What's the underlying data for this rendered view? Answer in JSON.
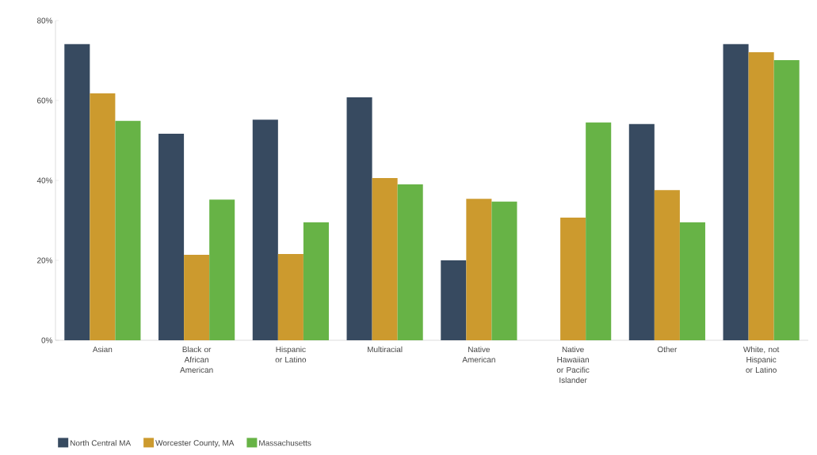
{
  "chart_data": {
    "type": "bar",
    "categories": [
      "Asian",
      "Black or African American",
      "Hispanic or Latino",
      "Multiracial",
      "Native American",
      "Native Hawaiian or Pacific Islander",
      "Other",
      "White, not Hispanic or Latino"
    ],
    "series": [
      {
        "name": "North Central MA",
        "color": "#374a60",
        "values": [
          74.1,
          51.7,
          55.2,
          60.8,
          20.0,
          null,
          54.1,
          74.1
        ]
      },
      {
        "name": "Worcester County, MA",
        "color": "#cc9a2e",
        "values": [
          61.8,
          21.4,
          21.6,
          40.6,
          35.4,
          30.7,
          37.6,
          72.1
        ]
      },
      {
        "name": "Massachusetts",
        "color": "#67b346",
        "values": [
          54.9,
          35.2,
          29.5,
          39.0,
          34.7,
          54.5,
          29.5,
          70.1
        ]
      }
    ],
    "ylim": [
      0,
      80
    ],
    "yticks": [
      {
        "value": 0,
        "label": "0%"
      },
      {
        "value": 20,
        "label": "20%"
      },
      {
        "value": 40,
        "label": "40%"
      },
      {
        "value": 60,
        "label": "60%"
      },
      {
        "value": 80,
        "label": "80%"
      }
    ],
    "grid": false,
    "legend": "bottom left"
  }
}
